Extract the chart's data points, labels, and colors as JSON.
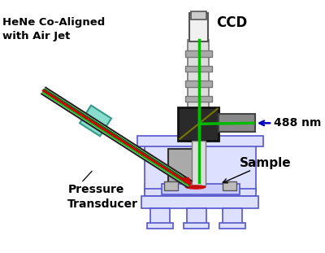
{
  "bg_color": "#ffffff",
  "labels": {
    "hene": "HeNe Co-Aligned\nwith Air Jet",
    "ccd": "CCD",
    "nm488": "488 nm",
    "sample": "Sample",
    "pressure": "Pressure\nTransducer"
  },
  "colors": {
    "blue_outline": "#5555cc",
    "blue_fill": "#dde0ff",
    "blue_fill2": "#c8ccff",
    "gray_light": "#cccccc",
    "gray_med": "#aaaaaa",
    "gray_dark": "#888888",
    "green": "#00bb00",
    "red": "#cc0000",
    "teal_fill": "#88ddcc",
    "teal_edge": "#339988",
    "black": "#000000",
    "white": "#ffffff",
    "arrow_blue": "#0000bb",
    "col_edge": "#777777",
    "col_fill": "#dddddd",
    "dichroic_bg": "#222222",
    "arm_fill": "#888888",
    "arm_edge": "#444444"
  }
}
